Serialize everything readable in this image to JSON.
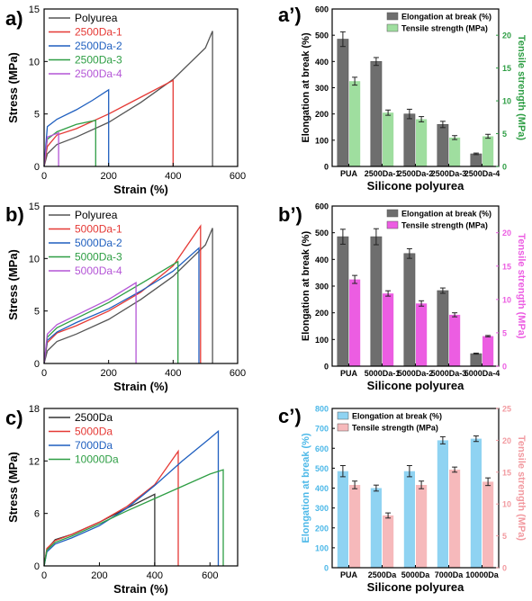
{
  "chart_data": [
    {
      "id": "a",
      "panel_label": "a)",
      "type": "line",
      "xlabel": "Strain (%)",
      "ylabel": "Stress (MPa)",
      "xlim": [
        0,
        600
      ],
      "ylim": [
        0,
        15
      ],
      "x_ticks": [
        0,
        200,
        400,
        600
      ],
      "y_ticks": [
        0,
        5,
        10,
        15
      ],
      "legend_position": "top-left",
      "series": [
        {
          "name": "Polyurea",
          "color": "#555555",
          "x": [
            0,
            10,
            40,
            100,
            200,
            300,
            400,
            500,
            522,
            522
          ],
          "y": [
            0,
            1.2,
            2.1,
            2.8,
            4.2,
            6.1,
            8.3,
            11.3,
            12.9,
            0
          ]
        },
        {
          "name": "2500Da-1",
          "color": "#e53935",
          "x": [
            0,
            10,
            40,
            100,
            200,
            300,
            400,
            400
          ],
          "y": [
            0,
            1.9,
            3.0,
            3.6,
            5.0,
            6.6,
            8.2,
            0
          ]
        },
        {
          "name": "2500Da-2",
          "color": "#1f5fbf",
          "x": [
            0,
            10,
            40,
            100,
            150,
            200,
            200
          ],
          "y": [
            0,
            3.8,
            4.5,
            5.4,
            6.3,
            7.3,
            0
          ]
        },
        {
          "name": "2500Da-3",
          "color": "#2e9e44",
          "x": [
            0,
            10,
            40,
            100,
            160,
            160
          ],
          "y": [
            0,
            2.6,
            3.3,
            4.0,
            4.4,
            0
          ]
        },
        {
          "name": "2500Da-4",
          "color": "#b455d6",
          "x": [
            0,
            10,
            45,
            45
          ],
          "y": [
            0,
            2.8,
            3.2,
            0
          ]
        }
      ]
    },
    {
      "id": "a-prime",
      "panel_label": "a’)",
      "type": "bar",
      "categories": [
        "PUA",
        "2500Da-1",
        "2500Da-2",
        "2500Da-3",
        "2500Da-4"
      ],
      "xlabel": "Silicone polyurea",
      "ylabel": "Elongation at break (%)",
      "y2label": "Tensile strength (MPa)",
      "ylim": [
        0,
        600
      ],
      "y2lim": [
        0,
        24
      ],
      "y_ticks": [
        0,
        100,
        200,
        300,
        400,
        500,
        600
      ],
      "y2_ticks": [
        0,
        5,
        10,
        15,
        20
      ],
      "legend_position": "top-right",
      "series": [
        {
          "name": "Elongation at break (%)",
          "axis": "left",
          "color": "#6e6e6e",
          "values": [
            485,
            400,
            200,
            160,
            48
          ],
          "errors": [
            28,
            15,
            18,
            12,
            3
          ]
        },
        {
          "name": "Tensile strength (MPa)",
          "axis": "right",
          "color": "#9fde9f",
          "values": [
            13.0,
            8.2,
            7.2,
            4.4,
            4.6
          ],
          "errors": [
            0.6,
            0.4,
            0.4,
            0.3,
            0.3
          ]
        }
      ],
      "right_axis_color": "#2e9e44"
    },
    {
      "id": "b",
      "panel_label": "b)",
      "type": "line",
      "xlabel": "Strain (%)",
      "ylabel": "Stress (MPa)",
      "xlim": [
        0,
        600
      ],
      "ylim": [
        0,
        15
      ],
      "x_ticks": [
        0,
        200,
        400,
        600
      ],
      "y_ticks": [
        0,
        5,
        10,
        15
      ],
      "legend_position": "top-left",
      "series": [
        {
          "name": "Polyurea",
          "color": "#555555",
          "x": [
            0,
            10,
            40,
            100,
            200,
            300,
            400,
            500,
            522,
            522
          ],
          "y": [
            0,
            1.2,
            2.1,
            2.8,
            4.2,
            6.1,
            8.3,
            11.3,
            12.9,
            0
          ]
        },
        {
          "name": "5000Da-1",
          "color": "#e53935",
          "x": [
            0,
            10,
            40,
            100,
            200,
            300,
            400,
            485,
            485
          ],
          "y": [
            0,
            2.0,
            2.9,
            3.6,
            5.0,
            6.8,
            9.3,
            13.1,
            0
          ]
        },
        {
          "name": "5000Da-2",
          "color": "#1f5fbf",
          "x": [
            0,
            10,
            40,
            100,
            200,
            300,
            400,
            480,
            480
          ],
          "y": [
            0,
            2.2,
            3.0,
            3.9,
            5.2,
            6.9,
            8.8,
            11.0,
            0
          ]
        },
        {
          "name": "5000Da-3",
          "color": "#2e9e44",
          "x": [
            0,
            10,
            40,
            100,
            200,
            300,
            415,
            415
          ],
          "y": [
            0,
            2.5,
            3.4,
            4.3,
            5.8,
            7.6,
            9.7,
            0
          ]
        },
        {
          "name": "5000Da-4",
          "color": "#b455d6",
          "x": [
            0,
            10,
            40,
            100,
            200,
            285,
            285
          ],
          "y": [
            0,
            2.8,
            3.7,
            4.6,
            6.1,
            7.7,
            0
          ]
        }
      ]
    },
    {
      "id": "b-prime",
      "panel_label": "b’)",
      "type": "bar",
      "categories": [
        "PUA",
        "5000Da-1",
        "5000Da-2",
        "5000Da-3",
        "5000Da-4"
      ],
      "xlabel": "Silicone polyurea",
      "ylabel": "Elongation at break (%)",
      "y2label": "Tensile strength (MPa)",
      "ylim": [
        0,
        600
      ],
      "y2lim": [
        0,
        24
      ],
      "y_ticks": [
        0,
        100,
        200,
        300,
        400,
        500,
        600
      ],
      "y2_ticks": [
        0,
        5,
        10,
        15,
        20
      ],
      "legend_position": "top-right",
      "series": [
        {
          "name": "Elongation at break (%)",
          "axis": "left",
          "color": "#6e6e6e",
          "values": [
            485,
            485,
            422,
            283,
            47
          ],
          "errors": [
            28,
            30,
            18,
            10,
            2
          ]
        },
        {
          "name": "Tensile strength (MPa)",
          "axis": "right",
          "color": "#ec5de2",
          "values": [
            13.0,
            10.9,
            9.4,
            7.7,
            4.5
          ],
          "errors": [
            0.6,
            0.4,
            0.4,
            0.3,
            0.1
          ]
        }
      ],
      "right_axis_color": "#ec5de2"
    },
    {
      "id": "c",
      "panel_label": "c)",
      "type": "line",
      "xlabel": "Strain (%)",
      "ylabel": "Stress (MPa)",
      "xlim": [
        0,
        700
      ],
      "ylim": [
        0,
        18
      ],
      "x_ticks": [
        0,
        200,
        400,
        600
      ],
      "y_ticks": [
        0,
        6,
        12,
        18
      ],
      "legend_position": "top-left",
      "series": [
        {
          "name": "2500Da",
          "color": "#333333",
          "x": [
            0,
            10,
            40,
            100,
            200,
            300,
            400,
            400
          ],
          "y": [
            0,
            1.9,
            3.0,
            3.6,
            5.0,
            6.6,
            8.2,
            0
          ]
        },
        {
          "name": "5000Da",
          "color": "#e53935",
          "x": [
            0,
            10,
            40,
            100,
            200,
            300,
            400,
            485,
            485
          ],
          "y": [
            0,
            2.0,
            2.9,
            3.6,
            5.0,
            6.8,
            9.3,
            13.1,
            0
          ]
        },
        {
          "name": "7000Da",
          "color": "#1f5fbf",
          "x": [
            0,
            10,
            40,
            100,
            200,
            300,
            400,
            500,
            600,
            630,
            630
          ],
          "y": [
            0,
            1.6,
            2.5,
            3.2,
            4.6,
            6.6,
            9.2,
            12.0,
            14.6,
            15.4,
            0
          ]
        },
        {
          "name": "10000Da",
          "color": "#2e9e44",
          "x": [
            0,
            10,
            40,
            100,
            200,
            300,
            400,
            500,
            600,
            648,
            648
          ],
          "y": [
            0,
            1.8,
            2.7,
            3.4,
            4.8,
            6.3,
            7.7,
            9.1,
            10.5,
            11.0,
            0
          ]
        }
      ]
    },
    {
      "id": "c-prime",
      "panel_label": "c’)",
      "type": "bar",
      "categories": [
        "PUA",
        "2500Da",
        "5000Da",
        "7000Da",
        "10000Da"
      ],
      "xlabel": "Silicone polyurea",
      "ylabel": "Elongation at break (%)",
      "y2label": "Tensile strength (MPa)",
      "ylim": [
        0,
        800
      ],
      "y2lim": [
        0,
        25
      ],
      "y_ticks": [
        0,
        100,
        200,
        300,
        400,
        500,
        600,
        700,
        800
      ],
      "y2_ticks": [
        0,
        5,
        10,
        15,
        20,
        25
      ],
      "legend_position": "top-left",
      "series": [
        {
          "name": "Elongation at break (%)",
          "axis": "left",
          "color": "#8fd3f2",
          "values": [
            485,
            400,
            485,
            640,
            648
          ],
          "errors": [
            28,
            15,
            28,
            18,
            14
          ]
        },
        {
          "name": "Tensile strength (MPa)",
          "axis": "right",
          "color": "#f6b9bb",
          "values": [
            13.0,
            8.2,
            13.0,
            15.4,
            13.5
          ],
          "errors": [
            0.6,
            0.4,
            0.6,
            0.4,
            0.6
          ]
        }
      ],
      "left_axis_color": "#4cb8e8",
      "right_axis_color": "#f29aa0"
    }
  ]
}
